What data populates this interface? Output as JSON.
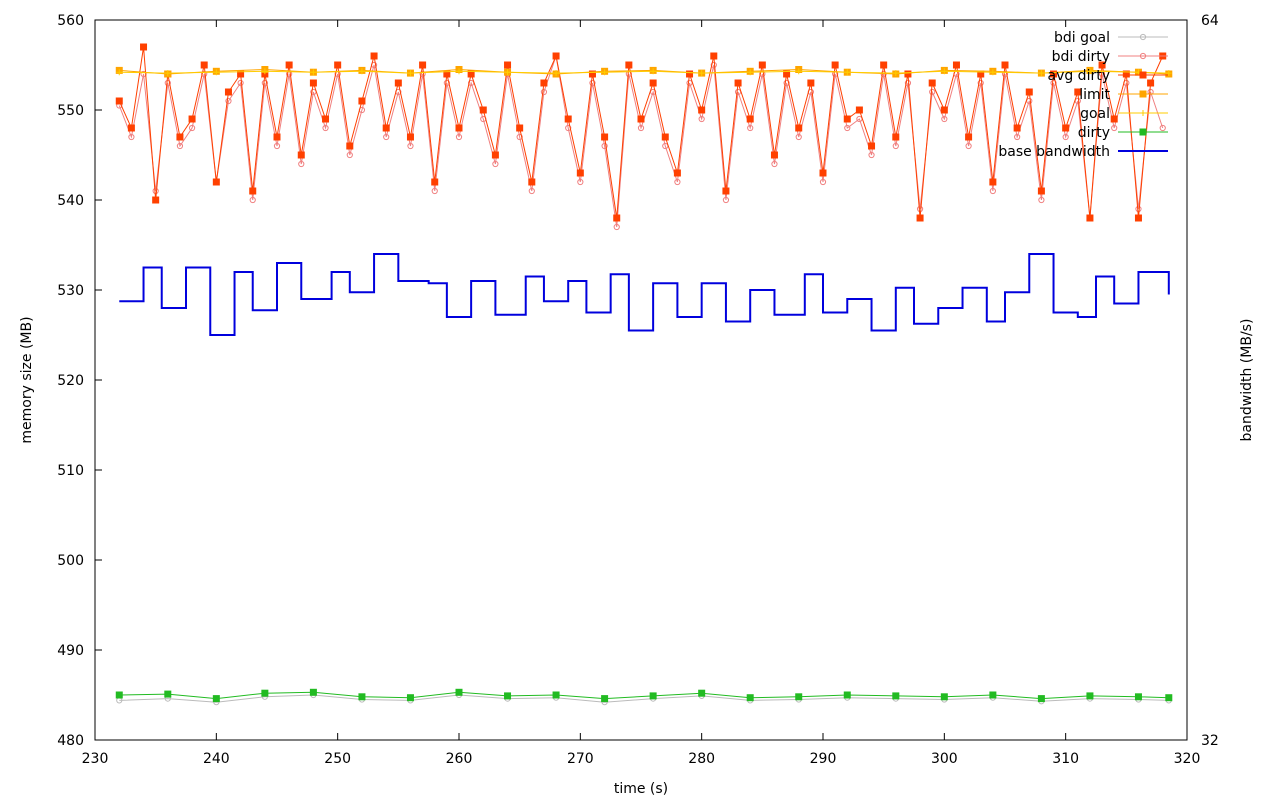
{
  "chart_data": {
    "type": "line",
    "xlabel": "time (s)",
    "ylabel": "memory size (MB)",
    "y2label": "bandwidth (MB/s)",
    "xlim": [
      230,
      320
    ],
    "ylim": [
      480,
      560
    ],
    "y2lim": [
      32,
      64
    ],
    "x_ticks": [
      230,
      240,
      250,
      260,
      270,
      280,
      290,
      300,
      310,
      320
    ],
    "y_ticks": [
      480,
      490,
      500,
      510,
      520,
      530,
      540,
      550,
      560
    ],
    "y2_ticks": [
      32,
      64
    ],
    "grid": false,
    "legend_position": "top-right",
    "series": [
      {
        "name": "bdi goal",
        "axis": "y",
        "color": "#bbbbbb",
        "marker": "circle",
        "x": [
          232,
          236,
          240,
          244,
          248,
          252,
          256,
          260,
          264,
          268,
          272,
          276,
          280,
          284,
          288,
          292,
          296,
          300,
          304,
          308,
          312,
          316,
          318.5
        ],
        "values": [
          484.4,
          484.6,
          484.2,
          484.8,
          485.0,
          484.5,
          484.4,
          485.0,
          484.6,
          484.7,
          484.2,
          484.6,
          484.9,
          484.4,
          484.5,
          484.7,
          484.6,
          484.5,
          484.7,
          484.3,
          484.6,
          484.5,
          484.4
        ]
      },
      {
        "name": "bdi dirty",
        "axis": "y",
        "color": "#f08080",
        "marker": "circle",
        "x": [
          232,
          233,
          234,
          235,
          236,
          237,
          238,
          239,
          240,
          241,
          242,
          243,
          244,
          245,
          246,
          247,
          248,
          249,
          250,
          251,
          252,
          253,
          254,
          255,
          256,
          257,
          258,
          259,
          260,
          261,
          262,
          263,
          264,
          265,
          266,
          267,
          268,
          269,
          270,
          271,
          272,
          273,
          274,
          275,
          276,
          277,
          278,
          279,
          280,
          281,
          282,
          283,
          284,
          285,
          286,
          287,
          288,
          289,
          290,
          291,
          292,
          293,
          294,
          295,
          296,
          297,
          298,
          299,
          300,
          301,
          302,
          303,
          304,
          305,
          306,
          307,
          308,
          309,
          310,
          311,
          312,
          313,
          314,
          315,
          316,
          317,
          318
        ],
        "values": [
          550.5,
          547,
          554,
          541,
          553,
          546,
          548,
          554,
          542,
          551,
          553,
          540,
          553,
          546,
          554,
          544,
          552,
          548,
          554,
          545,
          550,
          555,
          547,
          552,
          546,
          554,
          541,
          553,
          547,
          553,
          549,
          544,
          554,
          547,
          541,
          552,
          556,
          548,
          542,
          553,
          546,
          537,
          554,
          548,
          552,
          546,
          542,
          553,
          549,
          555,
          540,
          552,
          548,
          554,
          544,
          553,
          547,
          552,
          542,
          554,
          548,
          549,
          545,
          554,
          546,
          553,
          539,
          552,
          549,
          554,
          546,
          553,
          541,
          554,
          547,
          551,
          540,
          553,
          547,
          551,
          538,
          554,
          548,
          553,
          539,
          552,
          548
        ]
      },
      {
        "name": "avg dirty",
        "axis": "y",
        "color": "#ff4000",
        "marker": "square",
        "x": [
          232,
          233,
          234,
          235,
          236,
          237,
          238,
          239,
          240,
          241,
          242,
          243,
          244,
          245,
          246,
          247,
          248,
          249,
          250,
          251,
          252,
          253,
          254,
          255,
          256,
          257,
          258,
          259,
          260,
          261,
          262,
          263,
          264,
          265,
          266,
          267,
          268,
          269,
          270,
          271,
          272,
          273,
          274,
          275,
          276,
          277,
          278,
          279,
          280,
          281,
          282,
          283,
          284,
          285,
          286,
          287,
          288,
          289,
          290,
          291,
          292,
          293,
          294,
          295,
          296,
          297,
          298,
          299,
          300,
          301,
          302,
          303,
          304,
          305,
          306,
          307,
          308,
          309,
          310,
          311,
          312,
          313,
          314,
          315,
          316,
          317,
          318
        ],
        "values": [
          551,
          548,
          557,
          540,
          554,
          547,
          549,
          555,
          542,
          552,
          554,
          541,
          554,
          547,
          555,
          545,
          553,
          549,
          555,
          546,
          551,
          556,
          548,
          553,
          547,
          555,
          542,
          554,
          548,
          554,
          550,
          545,
          555,
          548,
          542,
          553,
          556,
          549,
          543,
          554,
          547,
          538,
          555,
          549,
          553,
          547,
          543,
          554,
          550,
          556,
          541,
          553,
          549,
          555,
          545,
          554,
          548,
          553,
          543,
          555,
          549,
          550,
          546,
          555,
          547,
          554,
          538,
          553,
          550,
          555,
          547,
          554,
          542,
          555,
          548,
          552,
          541,
          554,
          548,
          552,
          538,
          555,
          549,
          554,
          538,
          553,
          556
        ]
      },
      {
        "name": "limit",
        "axis": "y",
        "color": "#ffa500",
        "marker": "square",
        "x": [
          232,
          236,
          240,
          244,
          248,
          252,
          256,
          260,
          264,
          268,
          272,
          276,
          280,
          284,
          288,
          292,
          296,
          300,
          304,
          308,
          312,
          316,
          318.5
        ],
        "values": [
          554.4,
          554.0,
          554.3,
          554.5,
          554.2,
          554.4,
          554.1,
          554.5,
          554.2,
          554.0,
          554.3,
          554.4,
          554.1,
          554.3,
          554.5,
          554.2,
          554.0,
          554.4,
          554.3,
          554.1,
          554.4,
          554.2,
          554.0
        ]
      },
      {
        "name": "goal",
        "axis": "y",
        "color": "#ffcc00",
        "marker": "plus",
        "x": [
          232,
          236,
          240,
          244,
          248,
          252,
          256,
          260,
          264,
          268,
          272,
          276,
          280,
          284,
          288,
          292,
          296,
          300,
          304,
          308,
          312,
          316,
          318.5
        ],
        "values": [
          554.2,
          554.1,
          554.2,
          554.3,
          554.2,
          554.3,
          554.1,
          554.3,
          554.2,
          554.1,
          554.2,
          554.3,
          554.1,
          554.2,
          554.3,
          554.2,
          554.1,
          554.3,
          554.2,
          554.1,
          554.3,
          554.2,
          554.1
        ]
      },
      {
        "name": "dirty",
        "axis": "y",
        "color": "#22bb22",
        "marker": "square",
        "x": [
          232,
          236,
          240,
          244,
          248,
          252,
          256,
          260,
          264,
          268,
          272,
          276,
          280,
          284,
          288,
          292,
          296,
          300,
          304,
          308,
          312,
          316,
          318.5
        ],
        "values": [
          485.0,
          485.1,
          484.6,
          485.2,
          485.3,
          484.8,
          484.7,
          485.3,
          484.9,
          485.0,
          484.6,
          484.9,
          485.2,
          484.7,
          484.8,
          485.0,
          484.9,
          484.8,
          485.0,
          484.6,
          484.9,
          484.8,
          484.7
        ]
      },
      {
        "name": "base bandwidth",
        "axis": "y2",
        "color": "#0000dd",
        "marker": "step",
        "x": [
          232,
          234,
          235.5,
          237.5,
          239.5,
          241.5,
          243,
          245,
          247,
          249.5,
          251,
          253,
          255,
          257.5,
          259,
          261,
          263,
          265.5,
          267,
          269,
          270.5,
          272.5,
          274,
          276,
          278,
          280,
          282,
          284,
          286,
          288.5,
          290,
          292,
          294,
          296,
          297.5,
          299.5,
          301.5,
          303.5,
          305,
          307,
          309,
          311,
          312.5,
          314,
          316,
          318.5
        ],
        "values": [
          51.5,
          53.0,
          51.2,
          53.0,
          50.0,
          52.8,
          51.1,
          53.2,
          51.6,
          52.8,
          51.9,
          53.6,
          52.4,
          52.3,
          50.8,
          52.4,
          50.9,
          52.6,
          51.5,
          52.4,
          51.0,
          52.7,
          50.2,
          52.3,
          50.8,
          52.3,
          50.6,
          52.0,
          50.9,
          52.7,
          51.0,
          51.6,
          50.2,
          52.1,
          50.5,
          51.2,
          52.1,
          50.6,
          51.9,
          53.6,
          51.0,
          50.8,
          52.6,
          51.4,
          52.8,
          51.8
        ]
      }
    ]
  }
}
